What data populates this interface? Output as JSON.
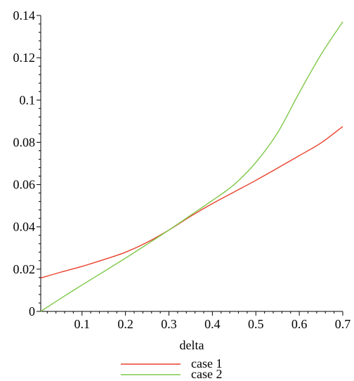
{
  "chart_data": {
    "type": "line",
    "title": "",
    "xlabel": "delta",
    "ylabel": "",
    "xlim": [
      0.005,
      0.7
    ],
    "ylim": [
      0,
      0.14
    ],
    "x_ticks": [
      0.1,
      0.2,
      0.3,
      0.4,
      0.5,
      0.6,
      0.7
    ],
    "x_tick_labels": [
      "0.1",
      "0.2",
      "0.3",
      "0.4",
      "0.5",
      "0.6",
      "0.7"
    ],
    "y_ticks": [
      0,
      0.02,
      0.04,
      0.06,
      0.08,
      0.1,
      0.12,
      0.14
    ],
    "y_tick_labels": [
      "0",
      "0.02",
      "0.04",
      "0.06",
      "0.08",
      "0.1",
      "0.12",
      "0.14"
    ],
    "grid": false,
    "legend_position": "bottom",
    "series": [
      {
        "name": "case 1",
        "color": "#e8412c",
        "x": [
          0.005,
          0.05,
          0.1,
          0.15,
          0.2,
          0.25,
          0.3,
          0.35,
          0.4,
          0.45,
          0.5,
          0.55,
          0.6,
          0.65,
          0.7
        ],
        "y": [
          0.0158,
          0.0185,
          0.0213,
          0.0245,
          0.028,
          0.0327,
          0.0385,
          0.045,
          0.051,
          0.0565,
          0.062,
          0.0678,
          0.0737,
          0.0797,
          0.0875
        ]
      },
      {
        "name": "case 2",
        "color": "#7fc84a",
        "x": [
          0.005,
          0.05,
          0.1,
          0.15,
          0.2,
          0.25,
          0.3,
          0.35,
          0.4,
          0.45,
          0.5,
          0.55,
          0.6,
          0.65,
          0.7
        ],
        "y": [
          0.0,
          0.006,
          0.0125,
          0.0188,
          0.0252,
          0.0318,
          0.0385,
          0.0455,
          0.0525,
          0.06,
          0.0705,
          0.0845,
          0.1035,
          0.1215,
          0.137
        ]
      }
    ]
  }
}
